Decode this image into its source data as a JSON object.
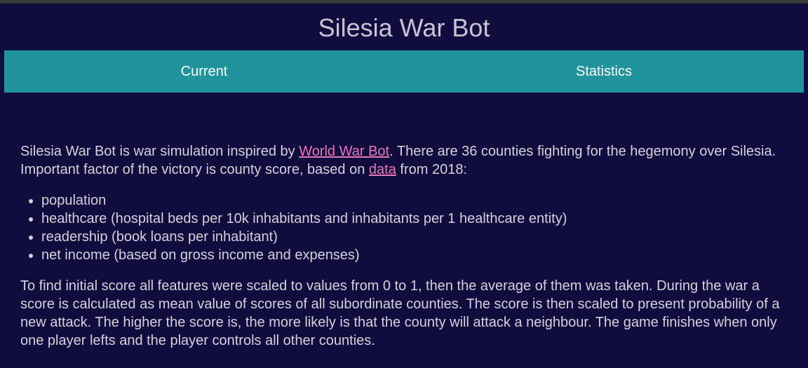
{
  "header": {
    "title": "Silesia War Bot"
  },
  "nav": {
    "items": [
      {
        "label": "Current"
      },
      {
        "label": "Statistics"
      }
    ]
  },
  "intro": {
    "part1": "Silesia War Bot is war simulation inspired by ",
    "link1": "World War Bot",
    "part2": ". There are 36 counties fighting for the hegemony over Silesia. Important factor of the victory is county score, based on ",
    "link2": "data",
    "part3": " from 2018:"
  },
  "features": [
    "population",
    "healthcare (hospital beds per 10k inhabitants and inhabitants per 1 healthcare entity)",
    "readership (book loans per inhabitant)",
    "net income (based on gross income and expenses)"
  ],
  "description": "To find initial score all features were scaled to values from 0 to 1, then the average of them was taken. During the war a score is calculated as mean value of scores of all subordinate counties. The score is then scaled to present probability of a new attack. The higher the score is, the more likely is that the county will attack a neighbour. The game finishes when only one player lefts and the player controls all other counties.",
  "colors": {
    "background": "#110c3e",
    "nav": "#20939c",
    "link": "#e877b6",
    "text": "#d5d1dc"
  }
}
